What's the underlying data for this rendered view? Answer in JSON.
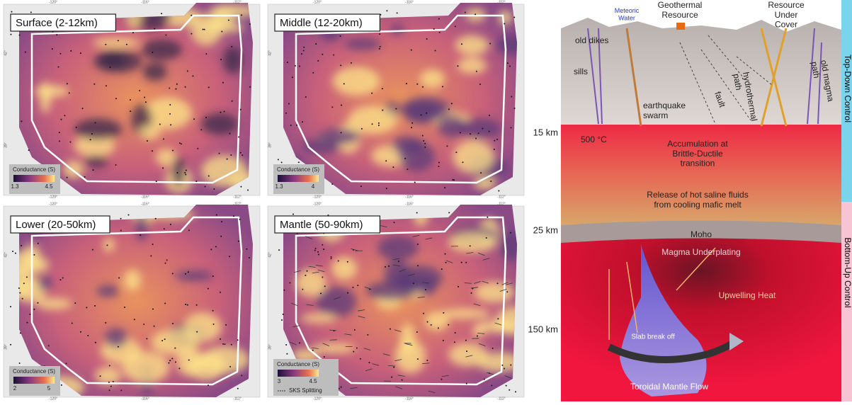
{
  "maps": {
    "panels": [
      {
        "title": "Surface (2-12km)",
        "colorbar_label": "Conductance (S)",
        "colorbar_ticks": [
          1.3,
          4.5
        ]
      },
      {
        "title": "Middle (12-20km)",
        "colorbar_label": "Conductance (S)",
        "colorbar_ticks": [
          1.3,
          4
        ]
      },
      {
        "title": "Lower (20-50km)",
        "colorbar_label": "Conductance (S)",
        "colorbar_ticks": [
          2,
          5
        ]
      },
      {
        "title": "Mantle (50-90km)",
        "colorbar_label": "Conductance (S)",
        "colorbar_ticks": [
          3,
          4.5
        ],
        "legend": "SKS Splitting"
      }
    ],
    "lon_ticks": [
      "-120°",
      "-116°",
      "-112°"
    ],
    "lat_ticks": [
      "42°",
      "39°"
    ]
  },
  "diagram": {
    "labels": {
      "meteoric_water": "Meteoric Water",
      "geothermal_resource": "Geothermal Resource",
      "resource_under_cover": "Resource Under Cover",
      "old_dikes": "old dikes",
      "sills": "sills",
      "fault": "fault",
      "hydrothermal_path": "hydrothermal path",
      "old_magma_path": "old magma path",
      "earthquake_swarm": "earthquake swarm",
      "temperature": "500 °C",
      "accumulation": "Accumulation at Brittle-Ductile transition",
      "release": "Release of hot saline fluids from cooling mafic melt",
      "moho": "Moho",
      "underplating": "Magma Underplating",
      "upwelling": "Upwelling Heat",
      "slab": "Slab break off",
      "toroidal": "Toroidal Mantle Flow"
    },
    "depths": [
      "15 km",
      "25 km",
      "150 km"
    ],
    "side_bars": [
      "Top-Down Control",
      "Bottom-Up Control"
    ]
  }
}
